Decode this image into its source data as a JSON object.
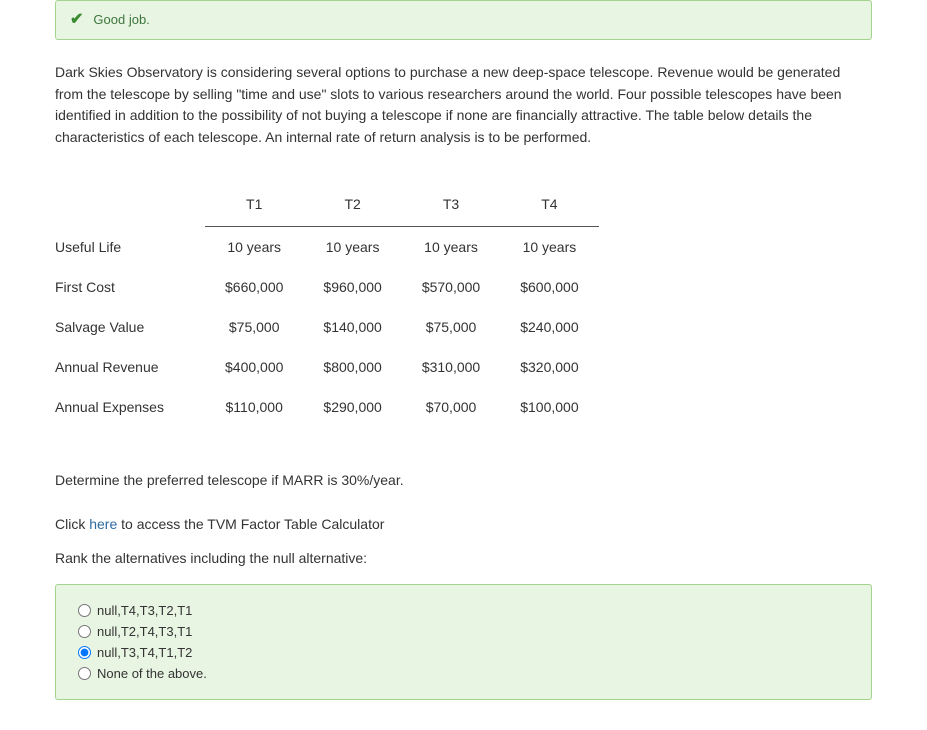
{
  "alert": {
    "message": "Good job."
  },
  "problem_text": "Dark Skies Observatory is considering several options to purchase a new deep-space telescope. Revenue would be generated from the telescope by selling \"time and use\" slots to various researchers around the world. Four possible telescopes have been identified in addition to the possibility of not buying a telescope if none are financially attractive. The table below details the characteristics of each telescope. An internal rate of return analysis is to be performed.",
  "table": {
    "columns": [
      "T1",
      "T2",
      "T3",
      "T4"
    ],
    "rows": [
      {
        "label": "Useful Life",
        "cells": [
          "10 years",
          "10 years",
          "10 years",
          "10 years"
        ]
      },
      {
        "label": "First Cost",
        "cells": [
          "$660,000",
          "$960,000",
          "$570,000",
          "$600,000"
        ]
      },
      {
        "label": "Salvage Value",
        "cells": [
          "$75,000",
          "$140,000",
          "$75,000",
          "$240,000"
        ]
      },
      {
        "label": "Annual Revenue",
        "cells": [
          "$400,000",
          "$800,000",
          "$310,000",
          "$320,000"
        ]
      },
      {
        "label": "Annual Expenses",
        "cells": [
          "$110,000",
          "$290,000",
          "$70,000",
          "$100,000"
        ]
      }
    ]
  },
  "prompt": "Determine the preferred telescope if MARR is 30%/year.",
  "click_prefix": "Click ",
  "click_link": "here",
  "click_suffix": " to access the TVM Factor Table Calculator",
  "rank_line": "Rank the alternatives including the null alternative:",
  "options": [
    {
      "label": "null,T4,T3,T2,T1",
      "selected": false
    },
    {
      "label": "null,T2,T4,T3,T1",
      "selected": false
    },
    {
      "label": "null,T3,T4,T1,T2",
      "selected": true
    },
    {
      "label": "None of the above.",
      "selected": false
    }
  ]
}
